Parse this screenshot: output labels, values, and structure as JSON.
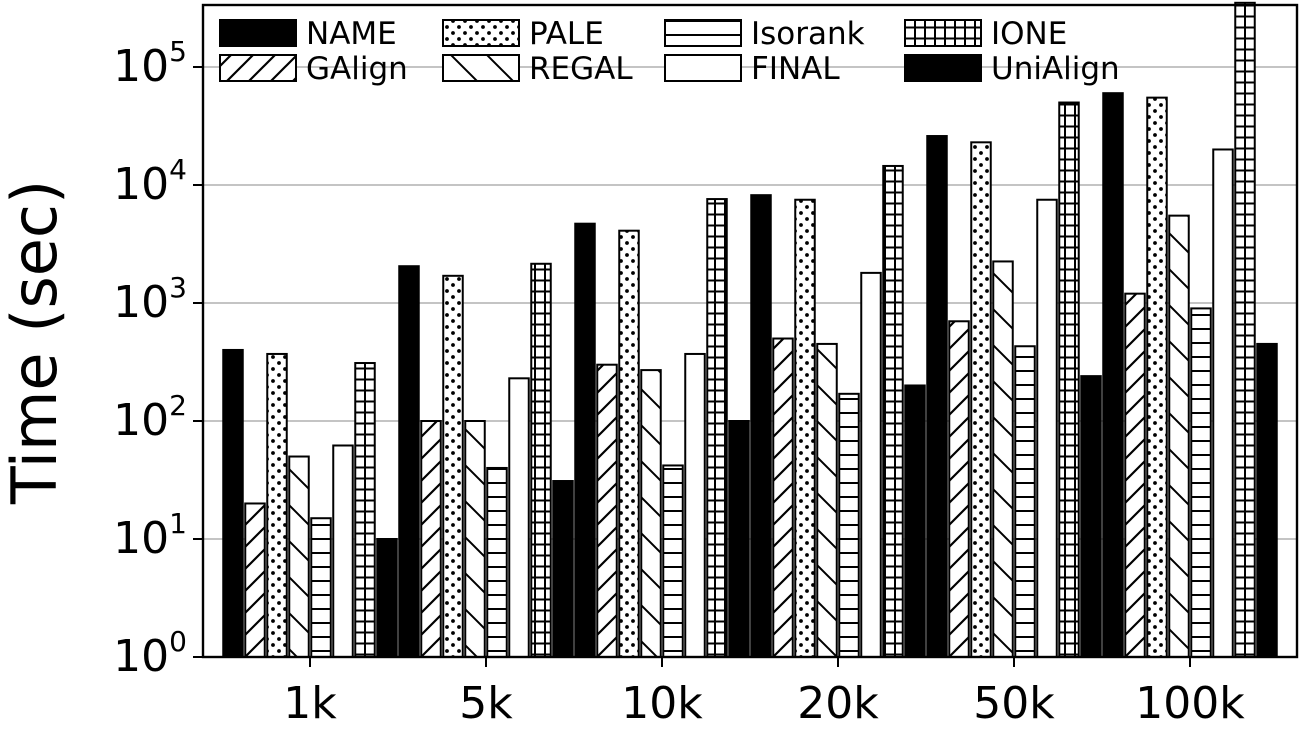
{
  "chart_data": {
    "type": "bar",
    "title": "",
    "xlabel": "",
    "ylabel": "Time (sec)",
    "yscale": "log",
    "ylim": [
      1,
      350000
    ],
    "grid": "horizontal",
    "legend_position": "top",
    "categories": [
      "1k",
      "5k",
      "10k",
      "20k",
      "50k",
      "100k"
    ],
    "y_ticks": [
      {
        "base": "10",
        "exp": "0",
        "value": 1
      },
      {
        "base": "10",
        "exp": "1",
        "value": 10
      },
      {
        "base": "10",
        "exp": "2",
        "value": 100
      },
      {
        "base": "10",
        "exp": "3",
        "value": 1000
      },
      {
        "base": "10",
        "exp": "4",
        "value": 10000
      },
      {
        "base": "10",
        "exp": "5",
        "value": 100000
      }
    ],
    "series": [
      {
        "name": "NAME",
        "pattern": "solid",
        "values": [
          400,
          2050,
          4700,
          8200,
          26000,
          60000
        ]
      },
      {
        "name": "GAlign",
        "pattern": "diagonal",
        "values": [
          20,
          100,
          300,
          500,
          700,
          1200
        ]
      },
      {
        "name": "PALE",
        "pattern": "dots",
        "values": [
          370,
          1700,
          4100,
          7500,
          23000,
          55000
        ]
      },
      {
        "name": "REGAL",
        "pattern": "backslash",
        "values": [
          50,
          100,
          270,
          450,
          2250,
          5500
        ]
      },
      {
        "name": "Isorank",
        "pattern": "hlines",
        "values": [
          15,
          40,
          42,
          170,
          430,
          900
        ]
      },
      {
        "name": "FINAL",
        "pattern": "open",
        "values": [
          62,
          230,
          370,
          1800,
          7500,
          20000
        ]
      },
      {
        "name": "IONE",
        "pattern": "grid",
        "values": [
          310,
          2150,
          7600,
          14500,
          50000,
          350000
        ]
      },
      {
        "name": "UniAlign",
        "pattern": "stars",
        "values": [
          10,
          31,
          100,
          200,
          240,
          450
        ]
      }
    ]
  }
}
